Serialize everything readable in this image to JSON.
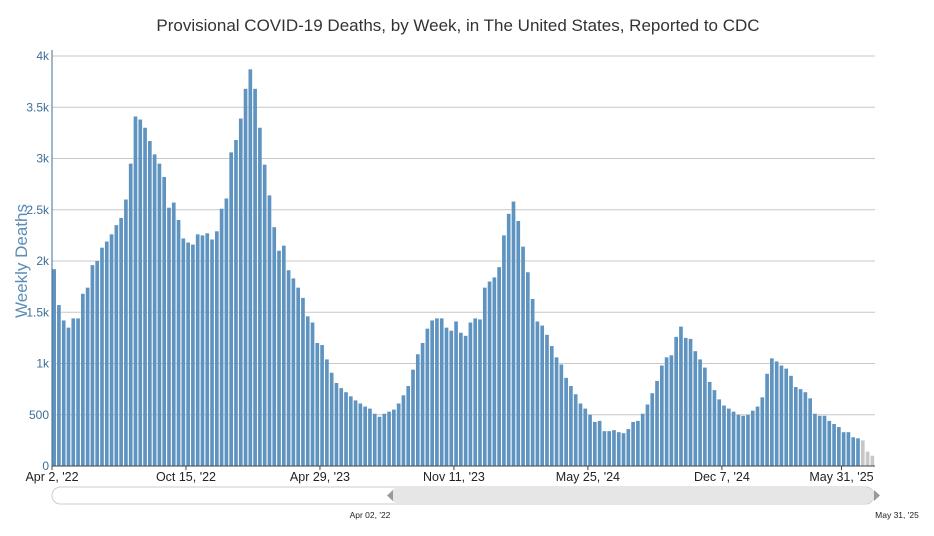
{
  "chart_data": {
    "type": "bar",
    "title": "Provisional COVID-19 Deaths, by Week, in The United States, Reported to CDC",
    "xlabel": "",
    "ylabel": "Weekly Deaths",
    "ylim": [
      0,
      4000
    ],
    "yticks": [
      "0",
      "500",
      "1k",
      "1.5k",
      "2k",
      "2.5k",
      "3k",
      "3.5k",
      "4k"
    ],
    "xticks": [
      "Apr 2, '22",
      "Oct 15, '22",
      "Apr 29, '23",
      "Nov 11, '23",
      "May 25, '24",
      "Dec 7, '24",
      "May 31, '25"
    ],
    "start_date": "2022-04-02",
    "grid": true,
    "colors": {
      "bar": "#5f94c0",
      "provisional_bar": "#c7c7c7",
      "grid": "#c8c8c8",
      "axis": "#3d6f96"
    },
    "values": [
      1920,
      1570,
      1420,
      1350,
      1440,
      1440,
      1680,
      1740,
      1960,
      2000,
      2130,
      2190,
      2260,
      2350,
      2420,
      2600,
      2950,
      3410,
      3380,
      3300,
      3170,
      3040,
      2950,
      2820,
      2520,
      2570,
      2400,
      2220,
      2180,
      2160,
      2260,
      2250,
      2270,
      2210,
      2290,
      2510,
      2610,
      3060,
      3180,
      3390,
      3680,
      3870,
      3680,
      3300,
      2940,
      2640,
      2330,
      2100,
      2150,
      1910,
      1830,
      1740,
      1640,
      1460,
      1400,
      1200,
      1180,
      1040,
      910,
      810,
      760,
      720,
      680,
      640,
      610,
      580,
      560,
      510,
      480,
      510,
      530,
      550,
      610,
      690,
      780,
      940,
      1090,
      1200,
      1340,
      1420,
      1440,
      1440,
      1350,
      1320,
      1410,
      1300,
      1270,
      1400,
      1440,
      1430,
      1740,
      1800,
      1840,
      1940,
      2250,
      2460,
      2580,
      2390,
      2140,
      1890,
      1630,
      1410,
      1370,
      1280,
      1170,
      1060,
      990,
      860,
      780,
      700,
      610,
      560,
      500,
      430,
      440,
      340,
      340,
      350,
      330,
      320,
      360,
      430,
      440,
      510,
      600,
      710,
      830,
      980,
      1060,
      1080,
      1260,
      1360,
      1250,
      1240,
      1120,
      1040,
      960,
      820,
      740,
      650,
      590,
      560,
      530,
      500,
      490,
      500,
      540,
      580,
      670,
      900,
      1050,
      1020,
      980,
      950,
      880,
      770,
      750,
      720,
      660,
      510,
      490,
      490,
      440,
      410,
      380,
      330,
      330,
      280,
      270,
      250,
      140,
      100
    ]
  },
  "navigator": {
    "start_label": "Apr 02, '22",
    "end_label": "May 31, '25"
  }
}
